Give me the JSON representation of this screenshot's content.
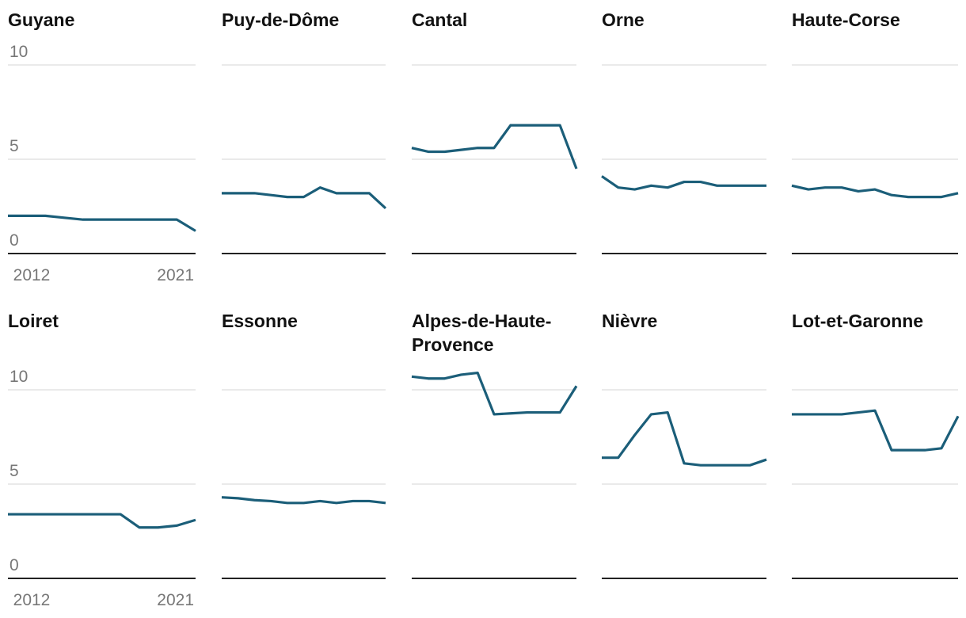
{
  "chart_data": [
    {
      "type": "line",
      "title": "Guyane",
      "color": "#1b5e79",
      "x": [
        2011,
        2012,
        2013,
        2014,
        2015,
        2016,
        2017,
        2018,
        2019,
        2020,
        2021
      ],
      "values": [
        2.0,
        2.0,
        2.0,
        1.9,
        1.8,
        1.8,
        1.8,
        1.8,
        1.8,
        1.8,
        1.2
      ],
      "xlim": [
        2011,
        2021
      ],
      "xticks": [
        2012,
        2021
      ],
      "ylim": [
        0,
        11
      ],
      "yticks": [
        0,
        5,
        10
      ],
      "grid": true
    },
    {
      "type": "line",
      "title": "Puy-de-Dôme",
      "color": "#1b5e79",
      "x": [
        2011,
        2012,
        2013,
        2014,
        2015,
        2016,
        2017,
        2018,
        2019,
        2020,
        2021
      ],
      "values": [
        3.2,
        3.2,
        3.2,
        3.1,
        3.0,
        3.0,
        3.5,
        3.2,
        3.2,
        3.2,
        2.4
      ],
      "xlim": [
        2011,
        2021
      ],
      "ylim": [
        0,
        11
      ],
      "yticks": [
        0,
        5,
        10
      ],
      "grid": true
    },
    {
      "type": "line",
      "title": "Cantal",
      "color": "#1b5e79",
      "x": [
        2011,
        2012,
        2013,
        2014,
        2015,
        2016,
        2017,
        2018,
        2019,
        2020,
        2021
      ],
      "values": [
        5.6,
        5.4,
        5.4,
        5.5,
        5.6,
        5.6,
        6.8,
        6.8,
        6.8,
        6.8,
        4.5
      ],
      "xlim": [
        2011,
        2021
      ],
      "ylim": [
        0,
        11
      ],
      "yticks": [
        0,
        5,
        10
      ],
      "grid": true
    },
    {
      "type": "line",
      "title": "Orne",
      "color": "#1b5e79",
      "x": [
        2011,
        2012,
        2013,
        2014,
        2015,
        2016,
        2017,
        2018,
        2019,
        2020,
        2021
      ],
      "values": [
        4.1,
        3.5,
        3.4,
        3.6,
        3.5,
        3.8,
        3.8,
        3.6,
        3.6,
        3.6,
        3.6
      ],
      "xlim": [
        2011,
        2021
      ],
      "ylim": [
        0,
        11
      ],
      "yticks": [
        0,
        5,
        10
      ],
      "grid": true
    },
    {
      "type": "line",
      "title": "Haute-Corse",
      "color": "#1b5e79",
      "x": [
        2011,
        2012,
        2013,
        2014,
        2015,
        2016,
        2017,
        2018,
        2019,
        2020,
        2021
      ],
      "values": [
        3.6,
        3.4,
        3.5,
        3.5,
        3.3,
        3.4,
        3.1,
        3.0,
        3.0,
        3.0,
        3.2
      ],
      "xlim": [
        2011,
        2021
      ],
      "ylim": [
        0,
        11
      ],
      "yticks": [
        0,
        5,
        10
      ],
      "grid": true
    },
    {
      "type": "line",
      "title": "Loiret",
      "color": "#1b5e79",
      "x": [
        2011,
        2012,
        2013,
        2014,
        2015,
        2016,
        2017,
        2018,
        2019,
        2020,
        2021
      ],
      "values": [
        3.4,
        3.4,
        3.4,
        3.4,
        3.4,
        3.4,
        3.4,
        2.7,
        2.7,
        2.8,
        3.1
      ],
      "xlim": [
        2011,
        2021
      ],
      "xticks": [
        2012,
        2021
      ],
      "ylim": [
        0,
        11
      ],
      "yticks": [
        0,
        5,
        10
      ],
      "grid": true
    },
    {
      "type": "line",
      "title": "Essonne",
      "color": "#1b5e79",
      "x": [
        2011,
        2012,
        2013,
        2014,
        2015,
        2016,
        2017,
        2018,
        2019,
        2020,
        2021
      ],
      "values": [
        4.3,
        4.25,
        4.15,
        4.1,
        4.0,
        4.0,
        4.1,
        4.0,
        4.1,
        4.1,
        4.0
      ],
      "xlim": [
        2011,
        2021
      ],
      "ylim": [
        0,
        11
      ],
      "yticks": [
        0,
        5,
        10
      ],
      "grid": true
    },
    {
      "type": "line",
      "title": "Alpes-de-Haute-Provence",
      "color": "#1b5e79",
      "x": [
        2011,
        2012,
        2013,
        2014,
        2015,
        2016,
        2017,
        2018,
        2019,
        2020,
        2021
      ],
      "values": [
        10.7,
        10.6,
        10.6,
        10.8,
        10.9,
        8.7,
        8.75,
        8.8,
        8.8,
        8.8,
        10.2
      ],
      "xlim": [
        2011,
        2021
      ],
      "ylim": [
        0,
        11
      ],
      "yticks": [
        0,
        5,
        10
      ],
      "grid": true
    },
    {
      "type": "line",
      "title": "Nièvre",
      "color": "#1b5e79",
      "x": [
        2011,
        2012,
        2013,
        2014,
        2015,
        2016,
        2017,
        2018,
        2019,
        2020,
        2021
      ],
      "values": [
        6.4,
        6.4,
        7.6,
        8.7,
        8.8,
        6.1,
        6.0,
        6.0,
        6.0,
        6.0,
        6.3
      ],
      "xlim": [
        2011,
        2021
      ],
      "ylim": [
        0,
        11
      ],
      "yticks": [
        0,
        5,
        10
      ],
      "grid": true
    },
    {
      "type": "line",
      "title": "Lot-et-Garonne",
      "color": "#1b5e79",
      "x": [
        2011,
        2012,
        2013,
        2014,
        2015,
        2016,
        2017,
        2018,
        2019,
        2020,
        2021
      ],
      "values": [
        8.7,
        8.7,
        8.7,
        8.7,
        8.8,
        8.9,
        6.8,
        6.8,
        6.8,
        6.9,
        8.6
      ],
      "xlim": [
        2011,
        2021
      ],
      "ylim": [
        0,
        11
      ],
      "yticks": [
        0,
        5,
        10
      ],
      "grid": true
    }
  ]
}
